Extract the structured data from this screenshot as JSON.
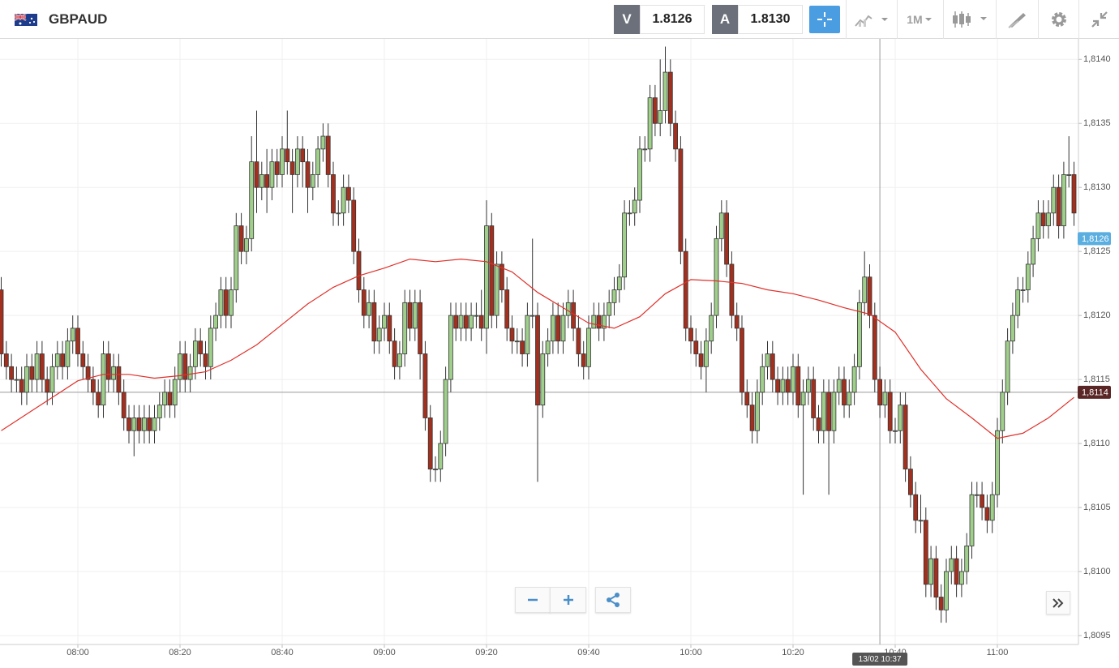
{
  "header": {
    "symbol": "GBPAUD",
    "bid_label": "V",
    "bid": "1.8126",
    "ask_label": "A",
    "ask": "1.8130",
    "timeframe": "1M"
  },
  "chart_data": {
    "type": "candlestick",
    "x": [
      "07:45",
      "07:46",
      "07:47",
      "07:48",
      "07:49",
      "07:50",
      "07:51",
      "07:52",
      "07:53",
      "07:54",
      "07:55",
      "07:56",
      "07:57",
      "07:58",
      "07:59",
      "08:00",
      "08:01",
      "08:02",
      "08:03",
      "08:04",
      "08:05",
      "08:06",
      "08:07",
      "08:08",
      "08:09",
      "08:10",
      "08:11",
      "08:12",
      "08:13",
      "08:14",
      "08:15",
      "08:16",
      "08:17",
      "08:18",
      "08:19",
      "08:20",
      "08:21",
      "08:22",
      "08:23",
      "08:24",
      "08:25",
      "08:26",
      "08:27",
      "08:28",
      "08:29",
      "08:30",
      "08:31",
      "08:32",
      "08:33",
      "08:34",
      "08:35",
      "08:36",
      "08:37",
      "08:38",
      "08:39",
      "08:40",
      "08:41",
      "08:42",
      "08:43",
      "08:44",
      "08:45",
      "08:46",
      "08:47",
      "08:48",
      "08:49",
      "08:50",
      "08:51",
      "08:52",
      "08:53",
      "08:54",
      "08:55",
      "08:56",
      "08:57",
      "08:58",
      "08:59",
      "09:00",
      "09:01",
      "09:02",
      "09:03",
      "09:04",
      "09:05",
      "09:06",
      "09:07",
      "09:08",
      "09:09",
      "09:10",
      "09:11",
      "09:12",
      "09:13",
      "09:14",
      "09:15",
      "09:16",
      "09:17",
      "09:18",
      "09:19",
      "09:20",
      "09:21",
      "09:22",
      "09:23",
      "09:24",
      "09:25",
      "09:26",
      "09:27",
      "09:28",
      "09:29",
      "09:30",
      "09:31",
      "09:32",
      "09:33",
      "09:34",
      "09:35",
      "09:36",
      "09:37",
      "09:38",
      "09:39",
      "09:40",
      "09:41",
      "09:42",
      "09:43",
      "09:44",
      "09:45",
      "09:46",
      "09:47",
      "09:48",
      "09:49",
      "09:50",
      "09:51",
      "09:52",
      "09:53",
      "09:54",
      "09:55",
      "09:56",
      "09:57",
      "09:58",
      "09:59",
      "10:00",
      "10:01",
      "10:02",
      "10:03",
      "10:04",
      "10:05",
      "10:06",
      "10:07",
      "10:08",
      "10:09",
      "10:10",
      "10:11",
      "10:12",
      "10:13",
      "10:14",
      "10:15",
      "10:16",
      "10:17",
      "10:18",
      "10:19",
      "10:20",
      "10:21",
      "10:22",
      "10:23",
      "10:24",
      "10:25",
      "10:26",
      "10:27",
      "10:28",
      "10:29",
      "10:30",
      "10:31",
      "10:32",
      "10:33",
      "10:34",
      "10:35",
      "10:36",
      "10:37",
      "10:38",
      "10:39",
      "10:40",
      "10:41",
      "10:42",
      "10:43",
      "10:44",
      "10:45",
      "10:46",
      "10:47",
      "10:48",
      "10:49",
      "10:50",
      "10:51",
      "10:52",
      "10:53",
      "10:54",
      "10:55",
      "10:56",
      "10:57",
      "10:58",
      "10:59",
      "11:00",
      "11:01",
      "11:02",
      "11:03",
      "11:04",
      "11:05",
      "11:06",
      "11:07",
      "11:08",
      "11:09",
      "11:10",
      "11:11",
      "11:12",
      "11:13",
      "11:14",
      "11:15"
    ],
    "open": [
      1.8122,
      1.8117,
      1.8116,
      1.8115,
      1.8115,
      1.8114,
      1.8116,
      1.8115,
      1.8117,
      1.8115,
      1.8114,
      1.8116,
      1.8117,
      1.8116,
      1.8118,
      1.8119,
      1.8117,
      1.8116,
      1.8115,
      1.8114,
      1.8113,
      1.8117,
      1.8115,
      1.8116,
      1.8114,
      1.8112,
      1.8111,
      1.8112,
      1.8111,
      1.8112,
      1.8111,
      1.8112,
      1.8113,
      1.8114,
      1.8113,
      1.8115,
      1.8117,
      1.8115,
      1.8116,
      1.8118,
      1.8117,
      1.8116,
      1.8119,
      1.812,
      1.8122,
      1.812,
      1.8122,
      1.8127,
      1.8125,
      1.8126,
      1.8132,
      1.813,
      1.8131,
      1.813,
      1.8132,
      1.8131,
      1.8133,
      1.8132,
      1.8131,
      1.8133,
      1.8132,
      1.813,
      1.8131,
      1.8133,
      1.8134,
      1.8131,
      1.8128,
      1.8128,
      1.813,
      1.8129,
      1.8125,
      1.8122,
      1.812,
      1.8121,
      1.8118,
      1.8119,
      1.812,
      1.8118,
      1.8116,
      1.8117,
      1.8121,
      1.8119,
      1.8121,
      1.8117,
      1.8112,
      1.8108,
      1.8108,
      1.811,
      1.8115,
      1.812,
      1.8119,
      1.812,
      1.8119,
      1.812,
      1.812,
      1.8119,
      1.8127,
      1.812,
      1.8124,
      1.8122,
      1.8119,
      1.8118,
      1.8118,
      1.8117,
      1.812,
      1.812,
      1.8113,
      1.8117,
      1.8118,
      1.812,
      1.8118,
      1.812,
      1.8121,
      1.8119,
      1.8117,
      1.8116,
      1.8119,
      1.812,
      1.8119,
      1.812,
      1.8121,
      1.8122,
      1.8123,
      1.8128,
      1.8128,
      1.8129,
      1.8133,
      1.8133,
      1.8137,
      1.8135,
      1.8136,
      1.8139,
      1.8135,
      1.8133,
      1.8125,
      1.8119,
      1.8118,
      1.8117,
      1.8116,
      1.8118,
      1.812,
      1.8126,
      1.8128,
      1.8124,
      1.812,
      1.8119,
      1.8114,
      1.8113,
      1.8111,
      1.8114,
      1.8116,
      1.8117,
      1.8115,
      1.8114,
      1.8115,
      1.8114,
      1.8116,
      1.8113,
      1.8114,
      1.8115,
      1.8112,
      1.8111,
      1.8114,
      1.8111,
      1.8114,
      1.8115,
      1.8113,
      1.8114,
      1.8116,
      1.8121,
      1.8123,
      1.812,
      1.8115,
      1.8113,
      1.8114,
      1.8111,
      1.8111,
      1.8113,
      1.8108,
      1.8106,
      1.8104,
      1.8104,
      1.8099,
      1.8101,
      1.8098,
      1.8097,
      1.81,
      1.8101,
      1.8099,
      1.81,
      1.8102,
      1.8106,
      1.8106,
      1.8105,
      1.8104,
      1.8106,
      1.8111,
      1.8114,
      1.8118,
      1.812,
      1.8122,
      1.8122,
      1.8124,
      1.8126,
      1.8128,
      1.8127,
      1.8128,
      1.813,
      1.8127,
      1.8131,
      1.8131
    ],
    "high": [
      1.8123,
      1.8118,
      1.8117,
      1.8116,
      1.8116,
      1.8117,
      1.8117,
      1.8118,
      1.8118,
      1.8116,
      1.8117,
      1.8118,
      1.8118,
      1.8119,
      1.812,
      1.812,
      1.8118,
      1.8117,
      1.8116,
      1.8115,
      1.8118,
      1.8118,
      1.8117,
      1.8117,
      1.8115,
      1.8113,
      1.8113,
      1.8113,
      1.8113,
      1.8113,
      1.8113,
      1.8114,
      1.8115,
      1.8115,
      1.8116,
      1.8118,
      1.8118,
      1.8117,
      1.8119,
      1.8119,
      1.8118,
      1.812,
      1.8121,
      1.8123,
      1.8123,
      1.8123,
      1.8128,
      1.8128,
      1.8127,
      1.8134,
      1.8136,
      1.8132,
      1.8133,
      1.8133,
      1.8133,
      1.8134,
      1.8136,
      1.8133,
      1.8134,
      1.8134,
      1.8133,
      1.8132,
      1.8134,
      1.8135,
      1.8135,
      1.8132,
      1.8129,
      1.8131,
      1.8131,
      1.813,
      1.8126,
      1.8123,
      1.8122,
      1.8122,
      1.812,
      1.8121,
      1.8121,
      1.8119,
      1.8118,
      1.8122,
      1.8122,
      1.8122,
      1.8122,
      1.8118,
      1.8113,
      1.8109,
      1.8111,
      1.8116,
      1.8121,
      1.8121,
      1.8121,
      1.8121,
      1.8121,
      1.8121,
      1.8122,
      1.8129,
      1.8128,
      1.8125,
      1.8125,
      1.8123,
      1.812,
      1.8119,
      1.8119,
      1.8121,
      1.8126,
      1.8121,
      1.8118,
      1.8119,
      1.8121,
      1.8121,
      1.8121,
      1.8122,
      1.8122,
      1.812,
      1.8118,
      1.812,
      1.8121,
      1.8121,
      1.8121,
      1.8122,
      1.8123,
      1.8124,
      1.8129,
      1.8129,
      1.813,
      1.8134,
      1.8134,
      1.8138,
      1.8138,
      1.814,
      1.8141,
      1.814,
      1.8136,
      1.8134,
      1.8126,
      1.812,
      1.8119,
      1.8118,
      1.8119,
      1.8121,
      1.8127,
      1.8129,
      1.8129,
      1.8125,
      1.8121,
      1.812,
      1.8115,
      1.8114,
      1.8115,
      1.8117,
      1.8118,
      1.8118,
      1.8116,
      1.8116,
      1.8116,
      1.8117,
      1.8117,
      1.8115,
      1.8116,
      1.8116,
      1.8113,
      1.8115,
      1.8115,
      1.8115,
      1.8116,
      1.8116,
      1.8115,
      1.8117,
      1.8122,
      1.8125,
      1.8124,
      1.8121,
      1.8116,
      1.8115,
      1.8115,
      1.8112,
      1.8114,
      1.8114,
      1.8109,
      1.8107,
      1.8106,
      1.8105,
      1.8102,
      1.8102,
      1.8099,
      1.8101,
      1.8102,
      1.8102,
      1.8101,
      1.8103,
      1.8107,
      1.8107,
      1.8107,
      1.8106,
      1.8107,
      1.8112,
      1.8115,
      1.8119,
      1.8121,
      1.8123,
      1.8123,
      1.8125,
      1.8127,
      1.8129,
      1.8129,
      1.8129,
      1.8131,
      1.8131,
      1.8132,
      1.8134,
      1.8132
    ],
    "low": [
      1.8116,
      1.8115,
      1.8114,
      1.8114,
      1.8113,
      1.8113,
      1.8114,
      1.8114,
      1.8114,
      1.8113,
      1.8113,
      1.8115,
      1.8115,
      1.8115,
      1.8117,
      1.8116,
      1.8115,
      1.8114,
      1.8113,
      1.8112,
      1.8112,
      1.8114,
      1.8114,
      1.8113,
      1.8111,
      1.811,
      1.8109,
      1.811,
      1.811,
      1.811,
      1.811,
      1.8111,
      1.8112,
      1.8112,
      1.8112,
      1.8114,
      1.8114,
      1.8114,
      1.8115,
      1.8116,
      1.8115,
      1.8115,
      1.8118,
      1.8119,
      1.8119,
      1.8119,
      1.8121,
      1.8124,
      1.8124,
      1.8125,
      1.8128,
      1.8129,
      1.8128,
      1.8129,
      1.813,
      1.813,
      1.8131,
      1.8128,
      1.813,
      1.813,
      1.8128,
      1.8129,
      1.813,
      1.8132,
      1.813,
      1.8127,
      1.8127,
      1.8127,
      1.8128,
      1.8124,
      1.8121,
      1.8119,
      1.8119,
      1.8117,
      1.8117,
      1.8118,
      1.8117,
      1.8115,
      1.8115,
      1.8116,
      1.8118,
      1.8118,
      1.8115,
      1.8111,
      1.8107,
      1.8107,
      1.8107,
      1.8109,
      1.8114,
      1.8118,
      1.8118,
      1.8118,
      1.8118,
      1.8119,
      1.8118,
      1.8117,
      1.8119,
      1.8119,
      1.8121,
      1.8118,
      1.8117,
      1.8117,
      1.8116,
      1.8116,
      1.8119,
      1.8107,
      1.8112,
      1.8116,
      1.8117,
      1.8117,
      1.8117,
      1.8119,
      1.8118,
      1.8116,
      1.8115,
      1.8115,
      1.8119,
      1.8118,
      1.8118,
      1.8119,
      1.812,
      1.8121,
      1.8122,
      1.8127,
      1.8127,
      1.8128,
      1.8132,
      1.8132,
      1.8134,
      1.8134,
      1.8135,
      1.8134,
      1.8132,
      1.8124,
      1.8118,
      1.8117,
      1.8116,
      1.8115,
      1.8114,
      1.8117,
      1.8119,
      1.8125,
      1.8123,
      1.8119,
      1.8118,
      1.8113,
      1.8112,
      1.811,
      1.811,
      1.8113,
      1.8115,
      1.8114,
      1.8113,
      1.8113,
      1.8113,
      1.8113,
      1.8112,
      1.8106,
      1.8113,
      1.8111,
      1.811,
      1.811,
      1.8106,
      1.811,
      1.8113,
      1.8112,
      1.8112,
      1.8113,
      1.8115,
      1.812,
      1.8119,
      1.8114,
      1.8112,
      1.8112,
      1.811,
      1.811,
      1.811,
      1.8107,
      1.8105,
      1.8103,
      1.8103,
      1.8098,
      1.8098,
      1.8097,
      1.8096,
      1.8096,
      1.8099,
      1.8098,
      1.8098,
      1.8099,
      1.8101,
      1.8105,
      1.8104,
      1.8103,
      1.8103,
      1.8105,
      1.811,
      1.8113,
      1.8117,
      1.8119,
      1.8121,
      1.8121,
      1.8123,
      1.8125,
      1.8126,
      1.8126,
      1.8127,
      1.8126,
      1.8126,
      1.813,
      1.8127
    ],
    "close": [
      1.8117,
      1.8116,
      1.8115,
      1.8115,
      1.8114,
      1.8116,
      1.8115,
      1.8117,
      1.8115,
      1.8114,
      1.8116,
      1.8117,
      1.8116,
      1.8118,
      1.8119,
      1.8117,
      1.8116,
      1.8115,
      1.8114,
      1.8113,
      1.8117,
      1.8115,
      1.8116,
      1.8114,
      1.8112,
      1.8111,
      1.8112,
      1.8111,
      1.8112,
      1.8111,
      1.8112,
      1.8113,
      1.8114,
      1.8113,
      1.8115,
      1.8117,
      1.8115,
      1.8116,
      1.8118,
      1.8117,
      1.8116,
      1.8119,
      1.812,
      1.8122,
      1.812,
      1.8122,
      1.8127,
      1.8125,
      1.8126,
      1.8132,
      1.813,
      1.8131,
      1.813,
      1.8132,
      1.8131,
      1.8133,
      1.8132,
      1.8131,
      1.8133,
      1.8132,
      1.813,
      1.8131,
      1.8133,
      1.8134,
      1.8131,
      1.8128,
      1.8128,
      1.813,
      1.8129,
      1.8125,
      1.8122,
      1.812,
      1.8121,
      1.8118,
      1.8119,
      1.812,
      1.8118,
      1.8116,
      1.8117,
      1.8121,
      1.8119,
      1.8121,
      1.8117,
      1.8112,
      1.8108,
      1.8108,
      1.811,
      1.8115,
      1.812,
      1.8119,
      1.812,
      1.8119,
      1.812,
      1.812,
      1.8119,
      1.8127,
      1.812,
      1.8124,
      1.8122,
      1.8119,
      1.8118,
      1.8118,
      1.8117,
      1.812,
      1.812,
      1.8113,
      1.8117,
      1.8118,
      1.812,
      1.8118,
      1.812,
      1.8121,
      1.8119,
      1.8117,
      1.8116,
      1.8119,
      1.812,
      1.8119,
      1.812,
      1.8121,
      1.8122,
      1.8123,
      1.8128,
      1.8128,
      1.8129,
      1.8133,
      1.8133,
      1.8137,
      1.8135,
      1.8136,
      1.8139,
      1.8135,
      1.8133,
      1.8125,
      1.8119,
      1.8118,
      1.8117,
      1.8116,
      1.8118,
      1.812,
      1.8126,
      1.8128,
      1.8124,
      1.812,
      1.8119,
      1.8114,
      1.8113,
      1.8111,
      1.8114,
      1.8116,
      1.8117,
      1.8115,
      1.8114,
      1.8115,
      1.8114,
      1.8116,
      1.8113,
      1.8114,
      1.8115,
      1.8112,
      1.8111,
      1.8114,
      1.8111,
      1.8114,
      1.8115,
      1.8113,
      1.8114,
      1.8116,
      1.8121,
      1.8123,
      1.812,
      1.8115,
      1.8113,
      1.8114,
      1.8111,
      1.8111,
      1.8113,
      1.8108,
      1.8106,
      1.8104,
      1.8104,
      1.8099,
      1.8101,
      1.8098,
      1.8097,
      1.81,
      1.8101,
      1.8099,
      1.81,
      1.8102,
      1.8106,
      1.8106,
      1.8105,
      1.8104,
      1.8106,
      1.8111,
      1.8114,
      1.8118,
      1.812,
      1.8122,
      1.8122,
      1.8124,
      1.8126,
      1.8128,
      1.8127,
      1.8128,
      1.813,
      1.8127,
      1.8131,
      1.8131,
      1.8128
    ],
    "up_color": "#9fcf8a",
    "down_color": "#a3301f",
    "moving_average": {
      "color": "#e0302a",
      "x": [
        "07:45",
        "07:50",
        "07:55",
        "08:00",
        "08:05",
        "08:10",
        "08:15",
        "08:20",
        "08:25",
        "08:30",
        "08:35",
        "08:40",
        "08:45",
        "08:50",
        "08:55",
        "09:00",
        "09:05",
        "09:10",
        "09:15",
        "09:20",
        "09:25",
        "09:30",
        "09:35",
        "09:40",
        "09:45",
        "09:50",
        "09:55",
        "10:00",
        "10:05",
        "10:10",
        "10:15",
        "10:20",
        "10:25",
        "10:30",
        "10:35",
        "10:40",
        "10:45",
        "10:50",
        "10:55",
        "11:00",
        "11:05",
        "11:10",
        "11:15"
      ],
      "values": [
        1.8111,
        1.81123,
        1.81136,
        1.81149,
        1.81154,
        1.81154,
        1.81151,
        1.81153,
        1.81156,
        1.81165,
        1.81177,
        1.81193,
        1.81209,
        1.81222,
        1.81231,
        1.81237,
        1.81244,
        1.81242,
        1.81244,
        1.81242,
        1.81234,
        1.81218,
        1.81206,
        1.81194,
        1.8119,
        1.81199,
        1.81217,
        1.81228,
        1.81227,
        1.81225,
        1.8122,
        1.81217,
        1.81212,
        1.81206,
        1.81201,
        1.81187,
        1.81158,
        1.81135,
        1.8112,
        1.81104,
        1.81108,
        1.8112,
        1.81136
      ]
    },
    "ylim": [
      1.80943,
      1.81416
    ],
    "yticks": [
      {
        "value": 1.8095,
        "label": "1,8095"
      },
      {
        "value": 1.81,
        "label": "1,8100"
      },
      {
        "value": 1.8105,
        "label": "1,8105"
      },
      {
        "value": 1.811,
        "label": "1,8110"
      },
      {
        "value": 1.8115,
        "label": "1,8115"
      },
      {
        "value": 1.812,
        "label": "1,8120"
      },
      {
        "value": 1.8125,
        "label": "1,8125"
      },
      {
        "value": 1.813,
        "label": "1,8130"
      },
      {
        "value": 1.8135,
        "label": "1,8135"
      },
      {
        "value": 1.814,
        "label": "1,8140"
      }
    ],
    "xticks": [
      "08:00",
      "08:20",
      "08:40",
      "09:00",
      "09:20",
      "09:40",
      "10:00",
      "10:20",
      "10:40",
      "11:00"
    ],
    "grid": true,
    "price_tag": {
      "value": 1.8126,
      "label": "1,8126",
      "color": "#5aaee0"
    },
    "crosshair": {
      "value": 1.8114,
      "label": "1,8114",
      "color": "#5a2626",
      "time_label": "13/02 10:37"
    }
  }
}
